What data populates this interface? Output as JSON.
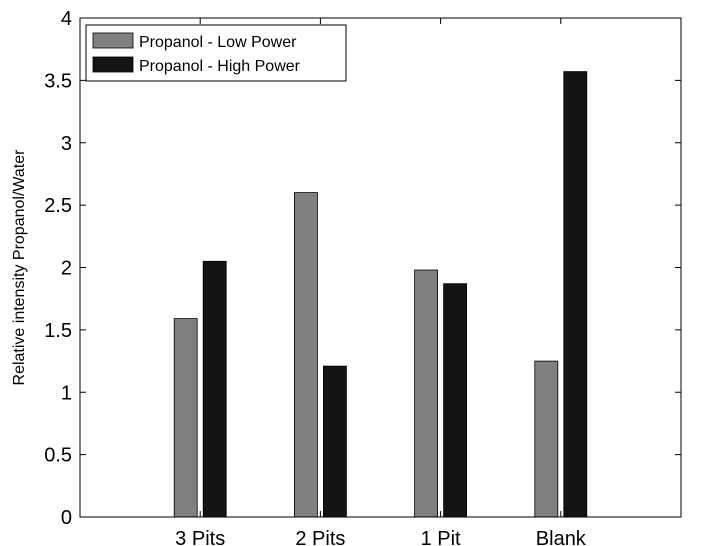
{
  "chart_data": {
    "type": "bar",
    "categories": [
      "3 Pits",
      "2 Pits",
      "1 Pit",
      "Blank"
    ],
    "series": [
      {
        "name": "Propanol - Low Power",
        "values": [
          1.59,
          2.6,
          1.98,
          1.25
        ],
        "color": "#808080"
      },
      {
        "name": "Propanol - High Power",
        "values": [
          2.05,
          1.21,
          1.87,
          3.57
        ],
        "color": "#141414"
      }
    ],
    "ylabel": "Relative intensity Propanol/Water",
    "xlabel": "",
    "ylim": [
      0,
      4
    ],
    "yticks": [
      0,
      0.5,
      1,
      1.5,
      2,
      2.5,
      3,
      3.5,
      4
    ],
    "ytick_labels": [
      "0",
      "0.5",
      "1",
      "1.5",
      "2",
      "2.5",
      "3",
      "3.5",
      "4"
    ],
    "xlim": [
      0,
      5
    ],
    "grid": false,
    "legend_position": "top-left"
  }
}
